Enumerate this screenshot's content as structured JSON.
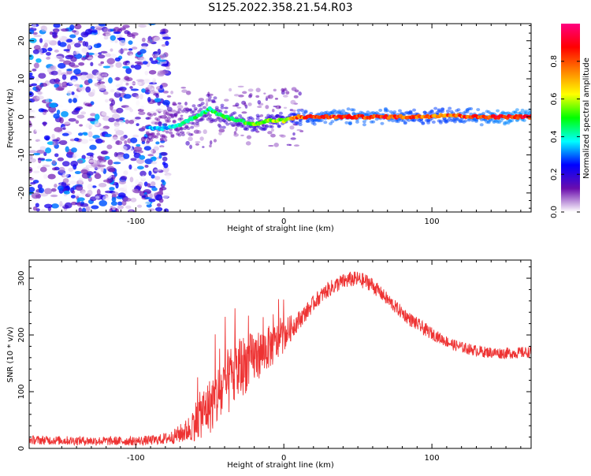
{
  "title": "S125.2022.358.21.54.R03",
  "chart_data": [
    {
      "type": "heatmap",
      "xlabel": "Height of straight line (km)",
      "ylabel": "Frequency (Hz)",
      "xlim": [
        -172,
        167
      ],
      "ylim": [
        -25,
        24.5
      ],
      "xticks": [
        -100,
        0,
        100
      ],
      "xtick_labels": [
        "-100",
        "0",
        "100"
      ],
      "yticks": [
        -20,
        -10,
        0,
        10,
        20
      ],
      "ytick_labels": [
        "-20",
        "-10",
        "0",
        "10",
        "20"
      ],
      "colorbar": {
        "label": "Normalized spectral amplitude",
        "range": [
          0,
          1
        ],
        "ticks": [
          0.0,
          0.2,
          0.4,
          0.6,
          0.8
        ],
        "tick_labels": [
          "0.0",
          "0.2",
          "0.4",
          "0.6",
          "0.8"
        ],
        "colors": [
          "#ffffff",
          "#6a0dad",
          "#0000ff",
          "#00ffff",
          "#00ff00",
          "#ffff00",
          "#ff8000",
          "#ff0000",
          "#ff0080"
        ]
      },
      "noise_region_x": [
        -172,
        -78
      ],
      "signal_trace": [
        {
          "x": -92,
          "y": -3,
          "amp": 0.35
        },
        {
          "x": -80,
          "y": -3,
          "amp": 0.35
        },
        {
          "x": -70,
          "y": -2,
          "amp": 0.4
        },
        {
          "x": -60,
          "y": 0,
          "amp": 0.45
        },
        {
          "x": -50,
          "y": 2,
          "amp": 0.45
        },
        {
          "x": -40,
          "y": 0,
          "amp": 0.5
        },
        {
          "x": -30,
          "y": -1,
          "amp": 0.5
        },
        {
          "x": -20,
          "y": -2,
          "amp": 0.55
        },
        {
          "x": -10,
          "y": -1,
          "amp": 0.55
        },
        {
          "x": 0,
          "y": -1,
          "amp": 0.6
        },
        {
          "x": 10,
          "y": 0,
          "amp": 0.8
        },
        {
          "x": 30,
          "y": 0,
          "amp": 0.85
        },
        {
          "x": 50,
          "y": 0,
          "amp": 0.85
        },
        {
          "x": 70,
          "y": 0,
          "amp": 0.85
        },
        {
          "x": 90,
          "y": 0,
          "amp": 0.8
        },
        {
          "x": 110,
          "y": 0.5,
          "amp": 0.8
        },
        {
          "x": 130,
          "y": 0,
          "amp": 0.85
        },
        {
          "x": 150,
          "y": 0,
          "amp": 0.9
        },
        {
          "x": 167,
          "y": 0,
          "amp": 0.9
        }
      ]
    },
    {
      "type": "line",
      "xlabel": "Height of straight line (km)",
      "ylabel": "SNR (10 * v/v)",
      "xlim": [
        -172,
        167
      ],
      "ylim": [
        0,
        332
      ],
      "xticks": [
        -100,
        0,
        100
      ],
      "xtick_labels": [
        "-100",
        "0",
        "100"
      ],
      "yticks": [
        0,
        100,
        200,
        300
      ],
      "ytick_labels": [
        "0",
        "100",
        "200",
        "300"
      ],
      "color": "#ee3333",
      "series": [
        {
          "x": [
            -172,
            -150,
            -120,
            -100,
            -85,
            -75,
            -65,
            -58,
            -50,
            -42,
            -35,
            -28,
            -20,
            -12,
            -5,
            0,
            8,
            15,
            22,
            30,
            38,
            45,
            50,
            58,
            65,
            75,
            85,
            95,
            105,
            115,
            125,
            135,
            145,
            155,
            167
          ],
          "y": [
            15,
            14,
            13,
            13,
            15,
            20,
            32,
            55,
            75,
            100,
            125,
            145,
            160,
            175,
            185,
            200,
            220,
            240,
            262,
            280,
            292,
            298,
            298,
            292,
            275,
            250,
            228,
            210,
            195,
            182,
            175,
            170,
            168,
            168,
            170
          ],
          "noise": [
            8,
            8,
            8,
            8,
            9,
            12,
            22,
            40,
            50,
            60,
            60,
            55,
            45,
            40,
            35,
            30,
            18,
            15,
            14,
            14,
            14,
            14,
            14,
            14,
            12,
            12,
            12,
            12,
            10,
            10,
            10,
            10,
            10,
            10,
            10
          ]
        }
      ]
    }
  ]
}
